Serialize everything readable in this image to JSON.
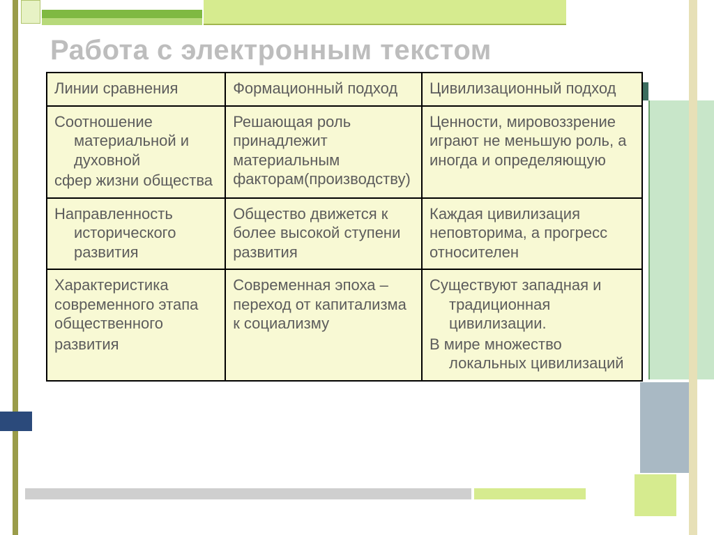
{
  "title": "Работа с электронным текстом",
  "table": {
    "background_color": "#f8f9d4",
    "border_color": "#000000",
    "text_color": "#5c5c5c",
    "font_size_pt": 16,
    "columns": [
      "Линии сравнения",
      "Формационный подход",
      "Цивилизационный подход"
    ],
    "rows": [
      {
        "c1a": "Соотношение материальной и духовной",
        "c1b": "сфер жизни общества",
        "c2": "Решающая роль принадлежит материальным факторам(производству)",
        "c3": "Ценности, мировоззрение играют не меньшую роль, а иногда и определяющую"
      },
      {
        "c1a": "Направленность исторического развития",
        "c1b": "",
        "c2": "Общество движется к более высокой ступени развития",
        "c3": "Каждая цивилизация неповторима, а прогресс относителен"
      },
      {
        "c1a": "Характеристика современного этапа общественного",
        "c1b": "развития",
        "c2": "Современная эпоха – переход от капитализма к социализму",
        "c3a": "Существуют западная и традиционная цивилизации.",
        "c3b": "В мире множество локальных цивилизаций"
      }
    ]
  },
  "decor_colors": {
    "olive": "#9a9c4a",
    "lime": "#d6eb8f",
    "green": "#7fb942",
    "lightgreen": "#c8e6c9",
    "navy": "#2b4a7b",
    "gray": "#cfcfcf"
  }
}
